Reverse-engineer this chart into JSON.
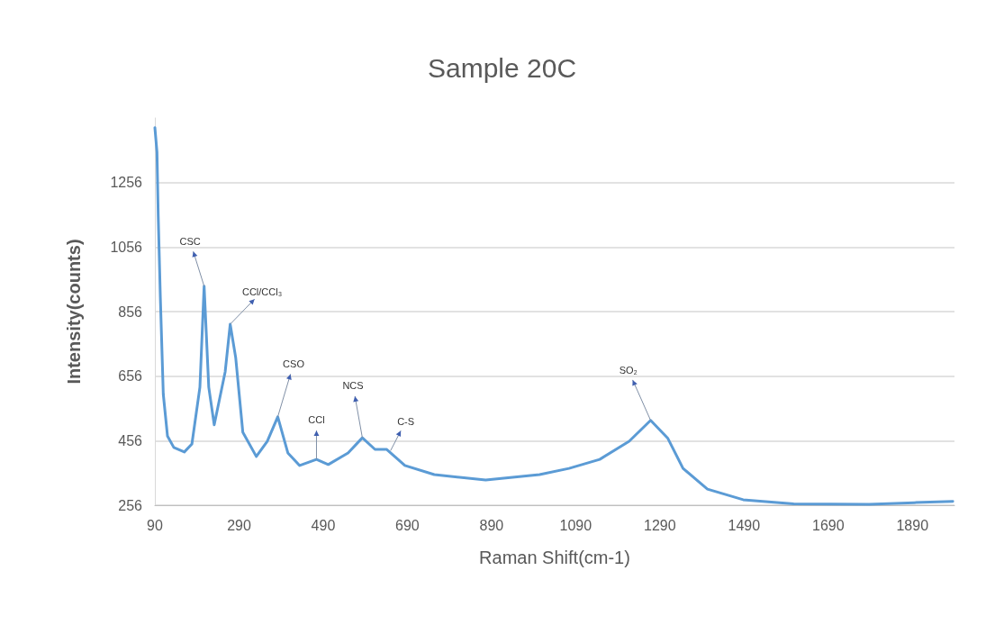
{
  "chart_data": {
    "type": "line",
    "title": "Sample 20C",
    "xlabel": "Raman Shift(cm-1)",
    "ylabel": "Intensity(counts)",
    "xlim": [
      90,
      1990
    ],
    "xticks": [
      90,
      290,
      490,
      690,
      890,
      1090,
      1290,
      1490,
      1690,
      1890
    ],
    "ylim": [
      256,
      1456
    ],
    "yticks": [
      256,
      456,
      656,
      856,
      1056,
      1256
    ],
    "grid": "y",
    "marker": "none",
    "line_style": "solid",
    "series": [
      {
        "color": "#5b9bd5",
        "x": [
          90,
          95,
          98,
          103,
          110,
          120,
          135,
          160,
          178,
          197,
          207,
          218,
          231,
          257,
          269,
          282,
          299,
          331,
          357,
          382,
          406,
          434,
          474,
          502,
          549,
          583,
          613,
          641,
          684,
          754,
          876,
          1004,
          1074,
          1147,
          1217,
          1268,
          1309,
          1345,
          1403,
          1488,
          1608,
          1787,
          1894,
          1986
        ],
        "values": [
          1426,
          1350,
          1150,
          900,
          600,
          470,
          435,
          421,
          446,
          622,
          935,
          622,
          505,
          669,
          817,
          714,
          482,
          407,
          454,
          530,
          418,
          379,
          398,
          382,
          418,
          465,
          429,
          429,
          379,
          351,
          334,
          351,
          370,
          398,
          454,
          519,
          463,
          370,
          306,
          273,
          260,
          259,
          264,
          268
        ]
      }
    ],
    "annotations": [
      {
        "text": "CSC",
        "x": 207,
        "y": 935
      },
      {
        "text": "CCl/CCl₃",
        "x": 269,
        "y": 817
      },
      {
        "text": "CSO",
        "x": 382,
        "y": 530
      },
      {
        "text": "CCl",
        "x": 474,
        "y": 398
      },
      {
        "text": "NCS",
        "x": 583,
        "y": 465
      },
      {
        "text": "C-S",
        "x": 650,
        "y": 425
      },
      {
        "text": "SO₂",
        "x": 1268,
        "y": 519
      }
    ]
  }
}
